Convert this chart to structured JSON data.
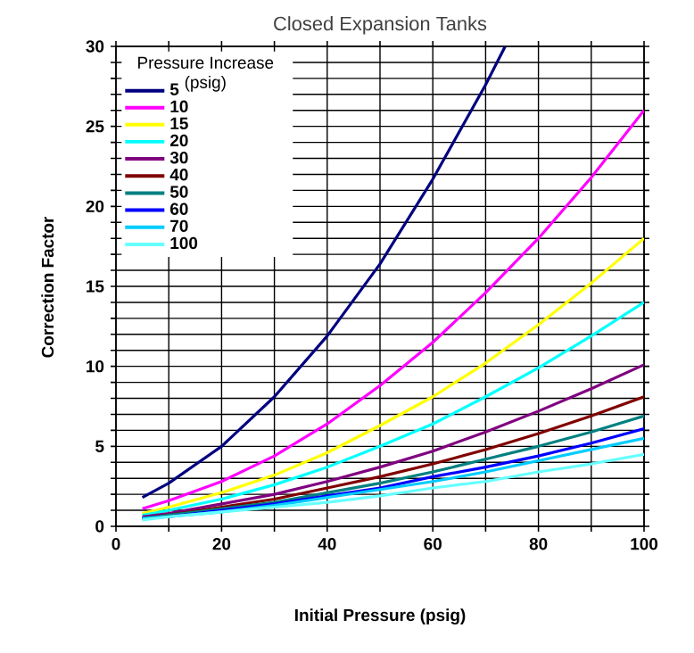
{
  "chart_data": {
    "type": "line",
    "title": "Closed Expansion Tanks",
    "xlabel": "Initial Pressure (psig)",
    "ylabel": "Correction Factor",
    "legend_title": "Pressure Increase (psig)",
    "legend": "top left",
    "grid": true,
    "line_style": "solid",
    "xlim": [
      0,
      100
    ],
    "ylim": [
      0,
      30
    ],
    "xticks": [
      0,
      {
        "value": 10,
        "label": null
      },
      20,
      {
        "value": 30,
        "label": null
      },
      40,
      {
        "value": 50,
        "label": null
      },
      60,
      {
        "value": 70,
        "label": null
      },
      80,
      {
        "value": 90,
        "label": null
      },
      100
    ],
    "yticks": [
      0,
      {
        "value": 1,
        "label": null
      },
      {
        "value": 2,
        "label": null
      },
      {
        "value": 3,
        "label": null
      },
      {
        "value": 4,
        "label": null
      },
      5,
      {
        "value": 6,
        "label": null
      },
      {
        "value": 7,
        "label": null
      },
      {
        "value": 8,
        "label": null
      },
      {
        "value": 9,
        "label": null
      },
      10,
      {
        "value": 11,
        "label": null
      },
      {
        "value": 12,
        "label": null
      },
      {
        "value": 13,
        "label": null
      },
      {
        "value": 14,
        "label": null
      },
      15,
      {
        "value": 16,
        "label": null
      },
      {
        "value": 17,
        "label": null
      },
      {
        "value": 18,
        "label": null
      },
      {
        "value": 19,
        "label": null
      },
      20,
      {
        "value": 21,
        "label": null
      },
      {
        "value": 22,
        "label": null
      },
      {
        "value": 23,
        "label": null
      },
      {
        "value": 24,
        "label": null
      },
      25,
      {
        "value": 26,
        "label": null
      },
      {
        "value": 27,
        "label": null
      },
      {
        "value": 28,
        "label": null
      },
      {
        "value": 29,
        "label": null
      },
      30
    ],
    "x": [
      5,
      10,
      20,
      30,
      40,
      50,
      60,
      70,
      80,
      90,
      100
    ],
    "series": [
      {
        "name": "5",
        "color": "#000080",
        "x": [
          5,
          10,
          20,
          30,
          40,
          50,
          60,
          70,
          73.7
        ],
        "values": [
          1.8,
          2.7,
          5.0,
          8.1,
          11.9,
          16.4,
          21.7,
          27.6,
          30.0
        ]
      },
      {
        "name": "10",
        "color": "#ff00ff",
        "values": [
          1.1,
          1.6,
          2.8,
          4.4,
          6.4,
          8.8,
          11.5,
          14.6,
          18.0,
          21.8,
          26.0
        ]
      },
      {
        "name": "15",
        "color": "#ffff00",
        "values": [
          0.8,
          1.2,
          2.1,
          3.2,
          4.6,
          6.3,
          8.1,
          10.2,
          12.6,
          15.2,
          18.0
        ]
      },
      {
        "name": "20",
        "color": "#00ffff",
        "values": [
          0.7,
          1.0,
          1.7,
          2.6,
          3.7,
          5.0,
          6.4,
          8.1,
          9.9,
          11.9,
          14.0
        ]
      },
      {
        "name": "30",
        "color": "#800080",
        "values": [
          0.6,
          0.8,
          1.4,
          2.0,
          2.8,
          3.7,
          4.7,
          5.9,
          7.2,
          8.6,
          10.1
        ]
      },
      {
        "name": "40",
        "color": "#800000",
        "values": [
          0.5,
          0.7,
          1.2,
          1.7,
          2.4,
          3.1,
          3.9,
          4.8,
          5.8,
          6.9,
          8.1
        ]
      },
      {
        "name": "50",
        "color": "#008080",
        "values": [
          0.5,
          0.7,
          1.1,
          1.5,
          2.1,
          2.7,
          3.4,
          4.2,
          5.0,
          5.9,
          6.9
        ]
      },
      {
        "name": "60",
        "color": "#0000ff",
        "values": [
          0.5,
          0.6,
          1.0,
          1.4,
          1.9,
          2.4,
          3.1,
          3.7,
          4.4,
          5.2,
          6.1
        ]
      },
      {
        "name": "70",
        "color": "#00ccff",
        "values": [
          0.5,
          0.6,
          0.9,
          1.3,
          1.8,
          2.3,
          2.8,
          3.4,
          4.1,
          4.8,
          5.5
        ]
      },
      {
        "name": "100",
        "color": "#66ffff",
        "values": [
          0.4,
          0.6,
          0.9,
          1.2,
          1.5,
          1.9,
          2.4,
          2.8,
          3.4,
          3.9,
          4.5
        ]
      }
    ]
  }
}
